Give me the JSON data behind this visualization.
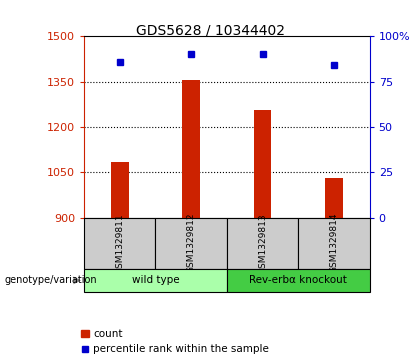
{
  "title": "GDS5628 / 10344402",
  "samples": [
    "GSM1329811",
    "GSM1329812",
    "GSM1329813",
    "GSM1329814"
  ],
  "counts": [
    1085,
    1355,
    1255,
    1030
  ],
  "percentile_ranks": [
    86,
    90,
    90,
    84
  ],
  "ylim_left": [
    900,
    1500
  ],
  "ylim_right": [
    0,
    100
  ],
  "yticks_left": [
    900,
    1050,
    1200,
    1350,
    1500
  ],
  "yticks_right": [
    0,
    25,
    50,
    75,
    100
  ],
  "bar_color": "#cc2200",
  "dot_color": "#0000cc",
  "groups": [
    {
      "label": "wild type",
      "indices": [
        0,
        1
      ],
      "color": "#aaffaa"
    },
    {
      "label": "Rev-erbα knockout",
      "indices": [
        2,
        3
      ],
      "color": "#44cc44"
    }
  ],
  "genotype_label": "genotype/variation",
  "legend_count_label": "count",
  "legend_pct_label": "percentile rank within the sample",
  "background_color": "#ffffff",
  "sample_box_color": "#cccccc"
}
